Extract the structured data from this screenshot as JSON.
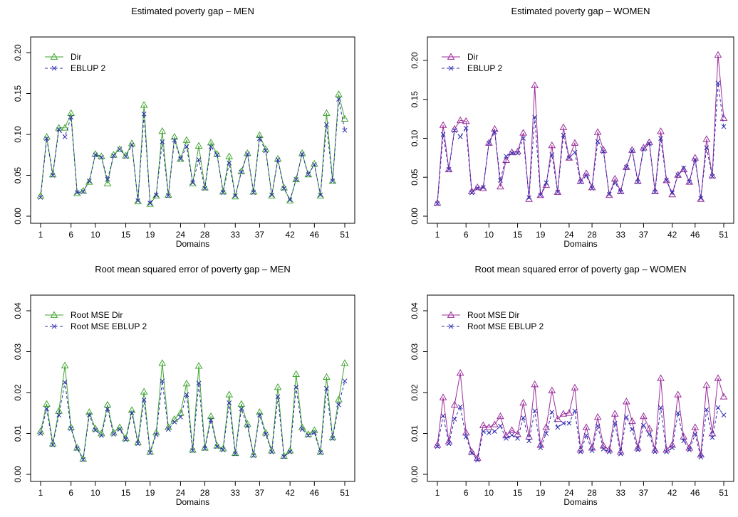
{
  "chart_data": [
    {
      "type": "line",
      "title": "Estimated poverty gap – MEN",
      "xlabel": "Domains",
      "ylabel": "",
      "x": [
        1,
        2,
        3,
        4,
        5,
        6,
        7,
        8,
        9,
        10,
        11,
        12,
        13,
        14,
        15,
        16,
        17,
        18,
        19,
        20,
        21,
        22,
        23,
        24,
        25,
        26,
        27,
        28,
        29,
        30,
        31,
        32,
        33,
        34,
        35,
        36,
        37,
        38,
        39,
        40,
        41,
        42,
        43,
        44,
        45,
        46,
        47,
        48,
        49,
        50,
        51
      ],
      "x_ticks": [
        "1",
        "6",
        "10",
        "15",
        "19",
        "24",
        "28",
        "33",
        "37",
        "42",
        "46",
        "51"
      ],
      "y_ticks": [
        "0.00",
        "0.05",
        "0.10",
        "0.15",
        "0.20"
      ],
      "ylim": [
        0,
        0.2
      ],
      "legend_position": "top-left",
      "series": [
        {
          "name": "Dir",
          "color": "#3fa62e",
          "line": "solid",
          "marker": "triangle",
          "values": [
            0.025,
            0.097,
            0.051,
            0.108,
            0.108,
            0.126,
            0.028,
            0.031,
            0.042,
            0.076,
            0.073,
            0.04,
            0.075,
            0.082,
            0.074,
            0.089,
            0.018,
            0.136,
            0.015,
            0.025,
            0.104,
            0.026,
            0.097,
            0.07,
            0.093,
            0.04,
            0.086,
            0.035,
            0.09,
            0.076,
            0.03,
            0.073,
            0.024,
            0.055,
            0.077,
            0.03,
            0.099,
            0.082,
            0.025,
            0.07,
            0.035,
            0.019,
            0.045,
            0.077,
            0.051,
            0.064,
            0.025,
            0.126,
            0.043,
            0.149,
            0.119
          ]
        },
        {
          "name": "EBLUP 2",
          "color": "#2b2bb0",
          "line": "dashed",
          "marker": "x",
          "values": [
            0.023,
            0.095,
            0.05,
            0.106,
            0.097,
            0.121,
            0.029,
            0.03,
            0.043,
            0.075,
            0.072,
            0.045,
            0.074,
            0.082,
            0.073,
            0.087,
            0.019,
            0.125,
            0.016,
            0.026,
            0.091,
            0.025,
            0.093,
            0.07,
            0.085,
            0.041,
            0.069,
            0.034,
            0.085,
            0.075,
            0.029,
            0.065,
            0.025,
            0.054,
            0.076,
            0.029,
            0.095,
            0.08,
            0.026,
            0.069,
            0.034,
            0.02,
            0.045,
            0.076,
            0.051,
            0.063,
            0.026,
            0.112,
            0.043,
            0.143,
            0.105
          ]
        }
      ]
    },
    {
      "type": "line",
      "title": "Estimated poverty gap – WOMEN",
      "xlabel": "Domains",
      "ylabel": "",
      "x": [
        1,
        2,
        3,
        4,
        5,
        6,
        7,
        8,
        9,
        10,
        11,
        12,
        13,
        14,
        15,
        16,
        17,
        18,
        19,
        20,
        21,
        22,
        23,
        24,
        25,
        26,
        27,
        28,
        29,
        30,
        31,
        32,
        33,
        34,
        35,
        36,
        37,
        38,
        39,
        40,
        41,
        42,
        43,
        44,
        45,
        46,
        47,
        48,
        49,
        50,
        51
      ],
      "x_ticks": [
        "1",
        "6",
        "10",
        "15",
        "19",
        "24",
        "28",
        "33",
        "37",
        "42",
        "46",
        "51"
      ],
      "y_ticks": [
        "0.00",
        "0.05",
        "0.10",
        "0.15",
        "0.20"
      ],
      "ylim": [
        0,
        0.21
      ],
      "legend_position": "top-left",
      "series": [
        {
          "name": "Dir",
          "color": "#9b2d9b",
          "line": "solid",
          "marker": "triangle",
          "values": [
            0.017,
            0.117,
            0.06,
            0.112,
            0.123,
            0.122,
            0.032,
            0.037,
            0.036,
            0.094,
            0.112,
            0.038,
            0.072,
            0.082,
            0.083,
            0.107,
            0.022,
            0.168,
            0.027,
            0.04,
            0.091,
            0.031,
            0.114,
            0.075,
            0.094,
            0.045,
            0.055,
            0.037,
            0.108,
            0.085,
            0.027,
            0.048,
            0.032,
            0.063,
            0.085,
            0.045,
            0.088,
            0.095,
            0.032,
            0.109,
            0.046,
            0.028,
            0.053,
            0.06,
            0.044,
            0.075,
            0.022,
            0.099,
            0.052,
            0.207,
            0.126
          ]
        },
        {
          "name": "EBLUP 2",
          "color": "#2b2bb0",
          "line": "dashed",
          "marker": "x",
          "values": [
            0.016,
            0.105,
            0.06,
            0.11,
            0.102,
            0.113,
            0.03,
            0.036,
            0.037,
            0.094,
            0.108,
            0.046,
            0.077,
            0.081,
            0.081,
            0.1,
            0.024,
            0.127,
            0.027,
            0.043,
            0.079,
            0.031,
            0.104,
            0.075,
            0.082,
            0.044,
            0.052,
            0.036,
            0.096,
            0.083,
            0.028,
            0.043,
            0.031,
            0.063,
            0.084,
            0.044,
            0.086,
            0.093,
            0.031,
            0.1,
            0.046,
            0.03,
            0.053,
            0.062,
            0.044,
            0.072,
            0.023,
            0.088,
            0.051,
            0.171,
            0.115
          ]
        }
      ]
    },
    {
      "type": "line",
      "title": "Root mean squared error of poverty gap – MEN",
      "xlabel": "Domains",
      "ylabel": "",
      "x": [
        1,
        2,
        3,
        4,
        5,
        6,
        7,
        8,
        9,
        10,
        11,
        12,
        13,
        14,
        15,
        16,
        17,
        18,
        19,
        20,
        21,
        22,
        23,
        24,
        25,
        26,
        27,
        28,
        29,
        30,
        31,
        32,
        33,
        34,
        35,
        36,
        37,
        38,
        39,
        40,
        41,
        42,
        43,
        44,
        45,
        46,
        47,
        48,
        49,
        50,
        51
      ],
      "x_ticks": [
        "1",
        "6",
        "10",
        "15",
        "19",
        "24",
        "28",
        "33",
        "37",
        "42",
        "46",
        "51"
      ],
      "y_ticks": [
        "0.00",
        "0.01",
        "0.02",
        "0.03",
        "0.04"
      ],
      "ylim": [
        0,
        0.04
      ],
      "legend_position": "top-left",
      "series": [
        {
          "name": "Root MSE Dir",
          "color": "#3fa62e",
          "line": "solid",
          "marker": "triangle",
          "values": [
            0.0105,
            0.0172,
            0.0075,
            0.0155,
            0.0266,
            0.0115,
            0.0065,
            0.0038,
            0.0152,
            0.0112,
            0.01,
            0.017,
            0.0102,
            0.0115,
            0.0088,
            0.0157,
            0.0078,
            0.0202,
            0.0055,
            0.0102,
            0.0272,
            0.0115,
            0.0135,
            0.015,
            0.0222,
            0.006,
            0.0265,
            0.0065,
            0.0142,
            0.007,
            0.0063,
            0.0195,
            0.0052,
            0.0172,
            0.0123,
            0.0048,
            0.0152,
            0.0102,
            0.0058,
            0.0213,
            0.0045,
            0.0058,
            0.0245,
            0.0115,
            0.0098,
            0.0108,
            0.0055,
            0.0238,
            0.009,
            0.0183,
            0.0272
          ]
        },
        {
          "name": "Root MSE EBLUP 2",
          "color": "#2b2bb0",
          "line": "dashed",
          "marker": "x",
          "values": [
            0.01,
            0.016,
            0.0072,
            0.0145,
            0.0225,
            0.0112,
            0.0063,
            0.0036,
            0.0145,
            0.0108,
            0.0095,
            0.016,
            0.0098,
            0.011,
            0.0085,
            0.015,
            0.0075,
            0.0182,
            0.0053,
            0.0097,
            0.0228,
            0.011,
            0.0128,
            0.014,
            0.0195,
            0.0058,
            0.0223,
            0.0063,
            0.0133,
            0.0068,
            0.006,
            0.0175,
            0.005,
            0.016,
            0.0118,
            0.0046,
            0.0145,
            0.0098,
            0.0055,
            0.019,
            0.0043,
            0.0055,
            0.0213,
            0.011,
            0.0095,
            0.0102,
            0.0053,
            0.021,
            0.0088,
            0.017,
            0.0228
          ]
        }
      ]
    },
    {
      "type": "line",
      "title": "Root mean squared error of poverty gap – WOMEN",
      "xlabel": "Domains",
      "ylabel": "",
      "x": [
        1,
        2,
        3,
        4,
        5,
        6,
        7,
        8,
        9,
        10,
        11,
        12,
        13,
        14,
        15,
        16,
        17,
        18,
        19,
        20,
        21,
        22,
        23,
        24,
        25,
        26,
        27,
        28,
        29,
        30,
        31,
        32,
        33,
        34,
        35,
        36,
        37,
        38,
        39,
        40,
        41,
        42,
        43,
        44,
        45,
        46,
        47,
        48,
        49,
        50,
        51
      ],
      "x_ticks": [
        "1",
        "6",
        "10",
        "15",
        "19",
        "24",
        "28",
        "33",
        "37",
        "42",
        "46",
        "51"
      ],
      "y_ticks": [
        "0.00",
        "0.01",
        "0.02",
        "0.03",
        "0.04"
      ],
      "ylim": [
        0,
        0.04
      ],
      "legend_position": "top-left",
      "series": [
        {
          "name": "Root MSE Dir",
          "color": "#9b2d9b",
          "line": "solid",
          "marker": "triangle",
          "values": [
            0.0072,
            0.0188,
            0.008,
            0.017,
            0.0248,
            0.0102,
            0.0055,
            0.004,
            0.012,
            0.0115,
            0.0122,
            0.0142,
            0.0095,
            0.0108,
            0.0098,
            0.0175,
            0.0092,
            0.022,
            0.0072,
            0.0115,
            0.0205,
            0.0135,
            0.0148,
            0.015,
            0.0212,
            0.006,
            0.0115,
            0.0065,
            0.014,
            0.007,
            0.006,
            0.0148,
            0.0055,
            0.0178,
            0.013,
            0.0065,
            0.0142,
            0.0112,
            0.006,
            0.0235,
            0.006,
            0.0072,
            0.0195,
            0.0092,
            0.0065,
            0.0115,
            0.0048,
            0.0218,
            0.01,
            0.0235,
            0.019
          ]
        },
        {
          "name": "Root MSE EBLUP 2",
          "color": "#2b2bb0",
          "line": "dashed",
          "marker": "x",
          "values": [
            0.0068,
            0.0143,
            0.0075,
            0.0135,
            0.0165,
            0.0092,
            0.0052,
            0.0035,
            0.0105,
            0.0102,
            0.0105,
            0.0118,
            0.0088,
            0.0096,
            0.0088,
            0.0138,
            0.0082,
            0.0155,
            0.0065,
            0.01,
            0.0152,
            0.0115,
            0.0125,
            0.0125,
            0.0155,
            0.0055,
            0.0095,
            0.0058,
            0.0118,
            0.0062,
            0.0055,
            0.0125,
            0.005,
            0.014,
            0.011,
            0.006,
            0.012,
            0.0098,
            0.0055,
            0.0163,
            0.0055,
            0.0065,
            0.015,
            0.0082,
            0.006,
            0.0098,
            0.0042,
            0.0158,
            0.009,
            0.0163,
            0.0145
          ]
        }
      ]
    }
  ]
}
